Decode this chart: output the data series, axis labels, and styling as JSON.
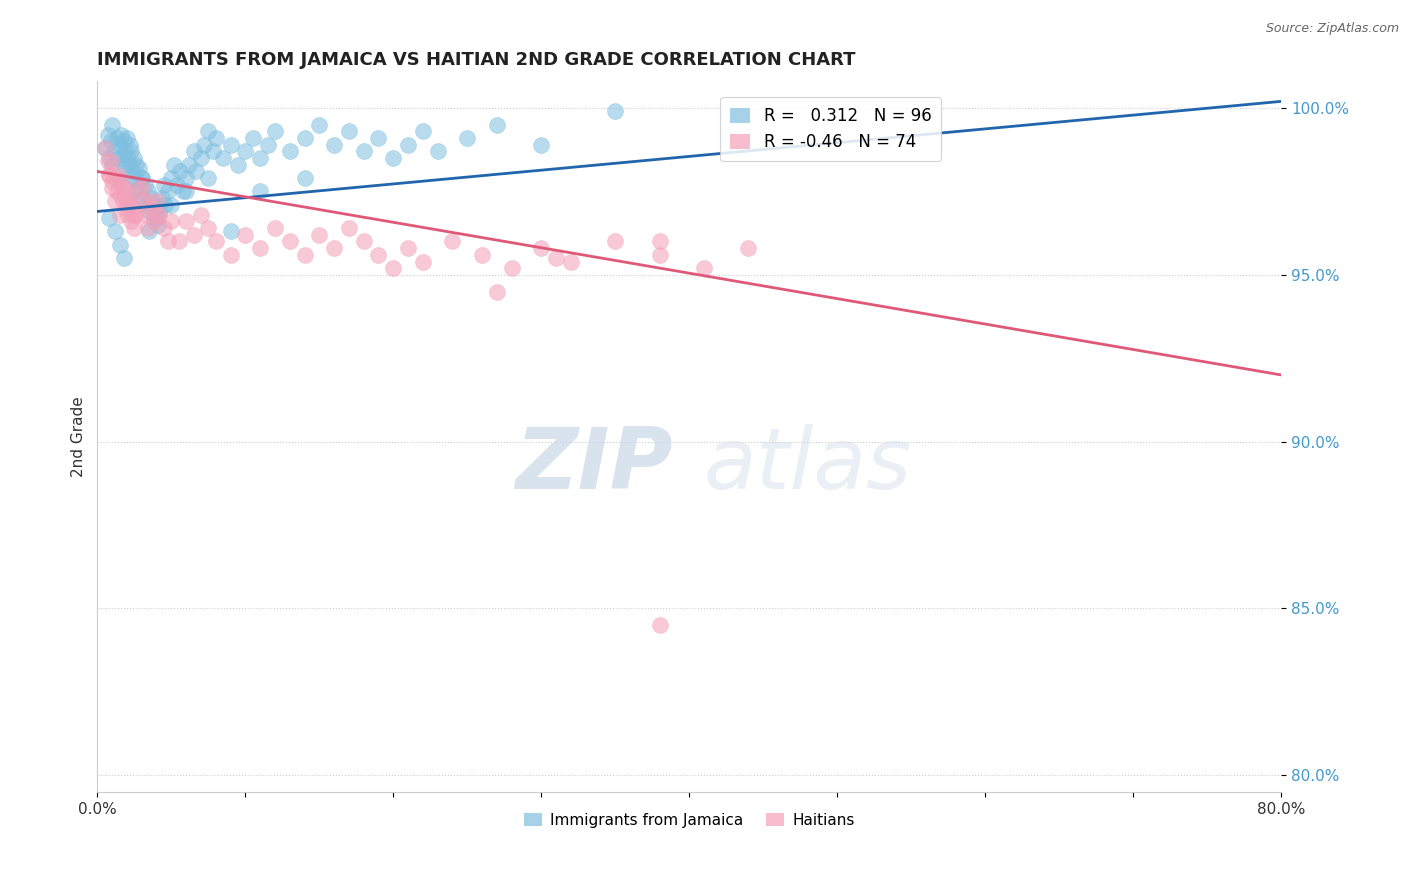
{
  "title": "IMMIGRANTS FROM JAMAICA VS HAITIAN 2ND GRADE CORRELATION CHART",
  "source_text": "Source: ZipAtlas.com",
  "ylabel": "2nd Grade",
  "xlim": [
    0.0,
    0.8
  ],
  "ylim": [
    0.795,
    1.008
  ],
  "x_ticks": [
    0.0,
    0.1,
    0.2,
    0.3,
    0.4,
    0.5,
    0.6,
    0.7,
    0.8
  ],
  "x_tick_labels": [
    "0.0%",
    "",
    "",
    "",
    "",
    "",
    "",
    "",
    "80.0%"
  ],
  "y_ticks": [
    0.8,
    0.85,
    0.9,
    0.95,
    1.0
  ],
  "y_tick_labels": [
    "80.0%",
    "85.0%",
    "90.0%",
    "95.0%",
    "100.0%"
  ],
  "blue_R": 0.312,
  "blue_N": 96,
  "pink_R": -0.46,
  "pink_N": 74,
  "blue_color": "#7fbfdf",
  "pink_color": "#f4a0b8",
  "blue_line_color": "#2166ac",
  "pink_line_color": "#e05878",
  "legend_label_blue": "Immigrants from Jamaica",
  "legend_label_pink": "Haitians",
  "blue_line_x0": 0.0,
  "blue_line_y0": 0.969,
  "blue_line_x1": 0.8,
  "blue_line_y1": 1.002,
  "pink_line_x0": 0.0,
  "pink_line_y0": 0.981,
  "pink_line_x1": 0.8,
  "pink_line_y1": 0.92,
  "blue_x": [
    0.005,
    0.007,
    0.008,
    0.009,
    0.01,
    0.01,
    0.012,
    0.013,
    0.014,
    0.015,
    0.015,
    0.016,
    0.017,
    0.018,
    0.018,
    0.019,
    0.02,
    0.02,
    0.021,
    0.022,
    0.022,
    0.023,
    0.024,
    0.025,
    0.025,
    0.026,
    0.027,
    0.028,
    0.028,
    0.03,
    0.031,
    0.032,
    0.033,
    0.034,
    0.035,
    0.036,
    0.038,
    0.04,
    0.041,
    0.042,
    0.044,
    0.045,
    0.046,
    0.048,
    0.05,
    0.052,
    0.054,
    0.056,
    0.058,
    0.06,
    0.062,
    0.065,
    0.067,
    0.07,
    0.072,
    0.075,
    0.078,
    0.08,
    0.085,
    0.09,
    0.095,
    0.1,
    0.105,
    0.11,
    0.115,
    0.12,
    0.13,
    0.14,
    0.15,
    0.16,
    0.17,
    0.18,
    0.19,
    0.2,
    0.21,
    0.22,
    0.23,
    0.25,
    0.27,
    0.3,
    0.008,
    0.012,
    0.015,
    0.018,
    0.022,
    0.025,
    0.03,
    0.035,
    0.04,
    0.05,
    0.06,
    0.075,
    0.09,
    0.11,
    0.14,
    0.35
  ],
  "blue_y": [
    0.988,
    0.992,
    0.985,
    0.99,
    0.983,
    0.995,
    0.987,
    0.991,
    0.985,
    0.989,
    0.978,
    0.992,
    0.986,
    0.99,
    0.983,
    0.987,
    0.981,
    0.991,
    0.985,
    0.989,
    0.983,
    0.987,
    0.981,
    0.985,
    0.979,
    0.983,
    0.978,
    0.982,
    0.975,
    0.979,
    0.973,
    0.977,
    0.971,
    0.975,
    0.969,
    0.973,
    0.967,
    0.971,
    0.965,
    0.969,
    0.973,
    0.977,
    0.971,
    0.975,
    0.979,
    0.983,
    0.977,
    0.981,
    0.975,
    0.979,
    0.983,
    0.987,
    0.981,
    0.985,
    0.989,
    0.993,
    0.987,
    0.991,
    0.985,
    0.989,
    0.983,
    0.987,
    0.991,
    0.985,
    0.989,
    0.993,
    0.987,
    0.991,
    0.995,
    0.989,
    0.993,
    0.987,
    0.991,
    0.985,
    0.989,
    0.993,
    0.987,
    0.991,
    0.995,
    0.989,
    0.967,
    0.963,
    0.959,
    0.955,
    0.971,
    0.975,
    0.979,
    0.963,
    0.967,
    0.971,
    0.975,
    0.979,
    0.963,
    0.975,
    0.979,
    0.999
  ],
  "pink_x": [
    0.005,
    0.007,
    0.008,
    0.009,
    0.01,
    0.012,
    0.013,
    0.014,
    0.015,
    0.016,
    0.017,
    0.018,
    0.019,
    0.02,
    0.021,
    0.022,
    0.023,
    0.024,
    0.025,
    0.026,
    0.028,
    0.03,
    0.032,
    0.034,
    0.036,
    0.038,
    0.04,
    0.042,
    0.045,
    0.048,
    0.05,
    0.055,
    0.06,
    0.065,
    0.07,
    0.075,
    0.08,
    0.09,
    0.1,
    0.11,
    0.12,
    0.13,
    0.14,
    0.15,
    0.16,
    0.17,
    0.18,
    0.19,
    0.2,
    0.21,
    0.22,
    0.24,
    0.26,
    0.28,
    0.3,
    0.32,
    0.35,
    0.38,
    0.41,
    0.44,
    0.008,
    0.01,
    0.012,
    0.015,
    0.018,
    0.02,
    0.025,
    0.03,
    0.035,
    0.04,
    0.38,
    0.31,
    0.27,
    0.38
  ],
  "pink_y": [
    0.988,
    0.984,
    0.98,
    0.984,
    0.978,
    0.979,
    0.975,
    0.98,
    0.974,
    0.978,
    0.972,
    0.976,
    0.97,
    0.974,
    0.968,
    0.972,
    0.966,
    0.97,
    0.964,
    0.968,
    0.976,
    0.972,
    0.968,
    0.964,
    0.97,
    0.966,
    0.972,
    0.968,
    0.964,
    0.96,
    0.966,
    0.96,
    0.966,
    0.962,
    0.968,
    0.964,
    0.96,
    0.956,
    0.962,
    0.958,
    0.964,
    0.96,
    0.956,
    0.962,
    0.958,
    0.964,
    0.96,
    0.956,
    0.952,
    0.958,
    0.954,
    0.96,
    0.956,
    0.952,
    0.958,
    0.954,
    0.96,
    0.956,
    0.952,
    0.958,
    0.98,
    0.976,
    0.972,
    0.968,
    0.976,
    0.972,
    0.968,
    0.976,
    0.972,
    0.968,
    0.96,
    0.955,
    0.945,
    0.845
  ]
}
